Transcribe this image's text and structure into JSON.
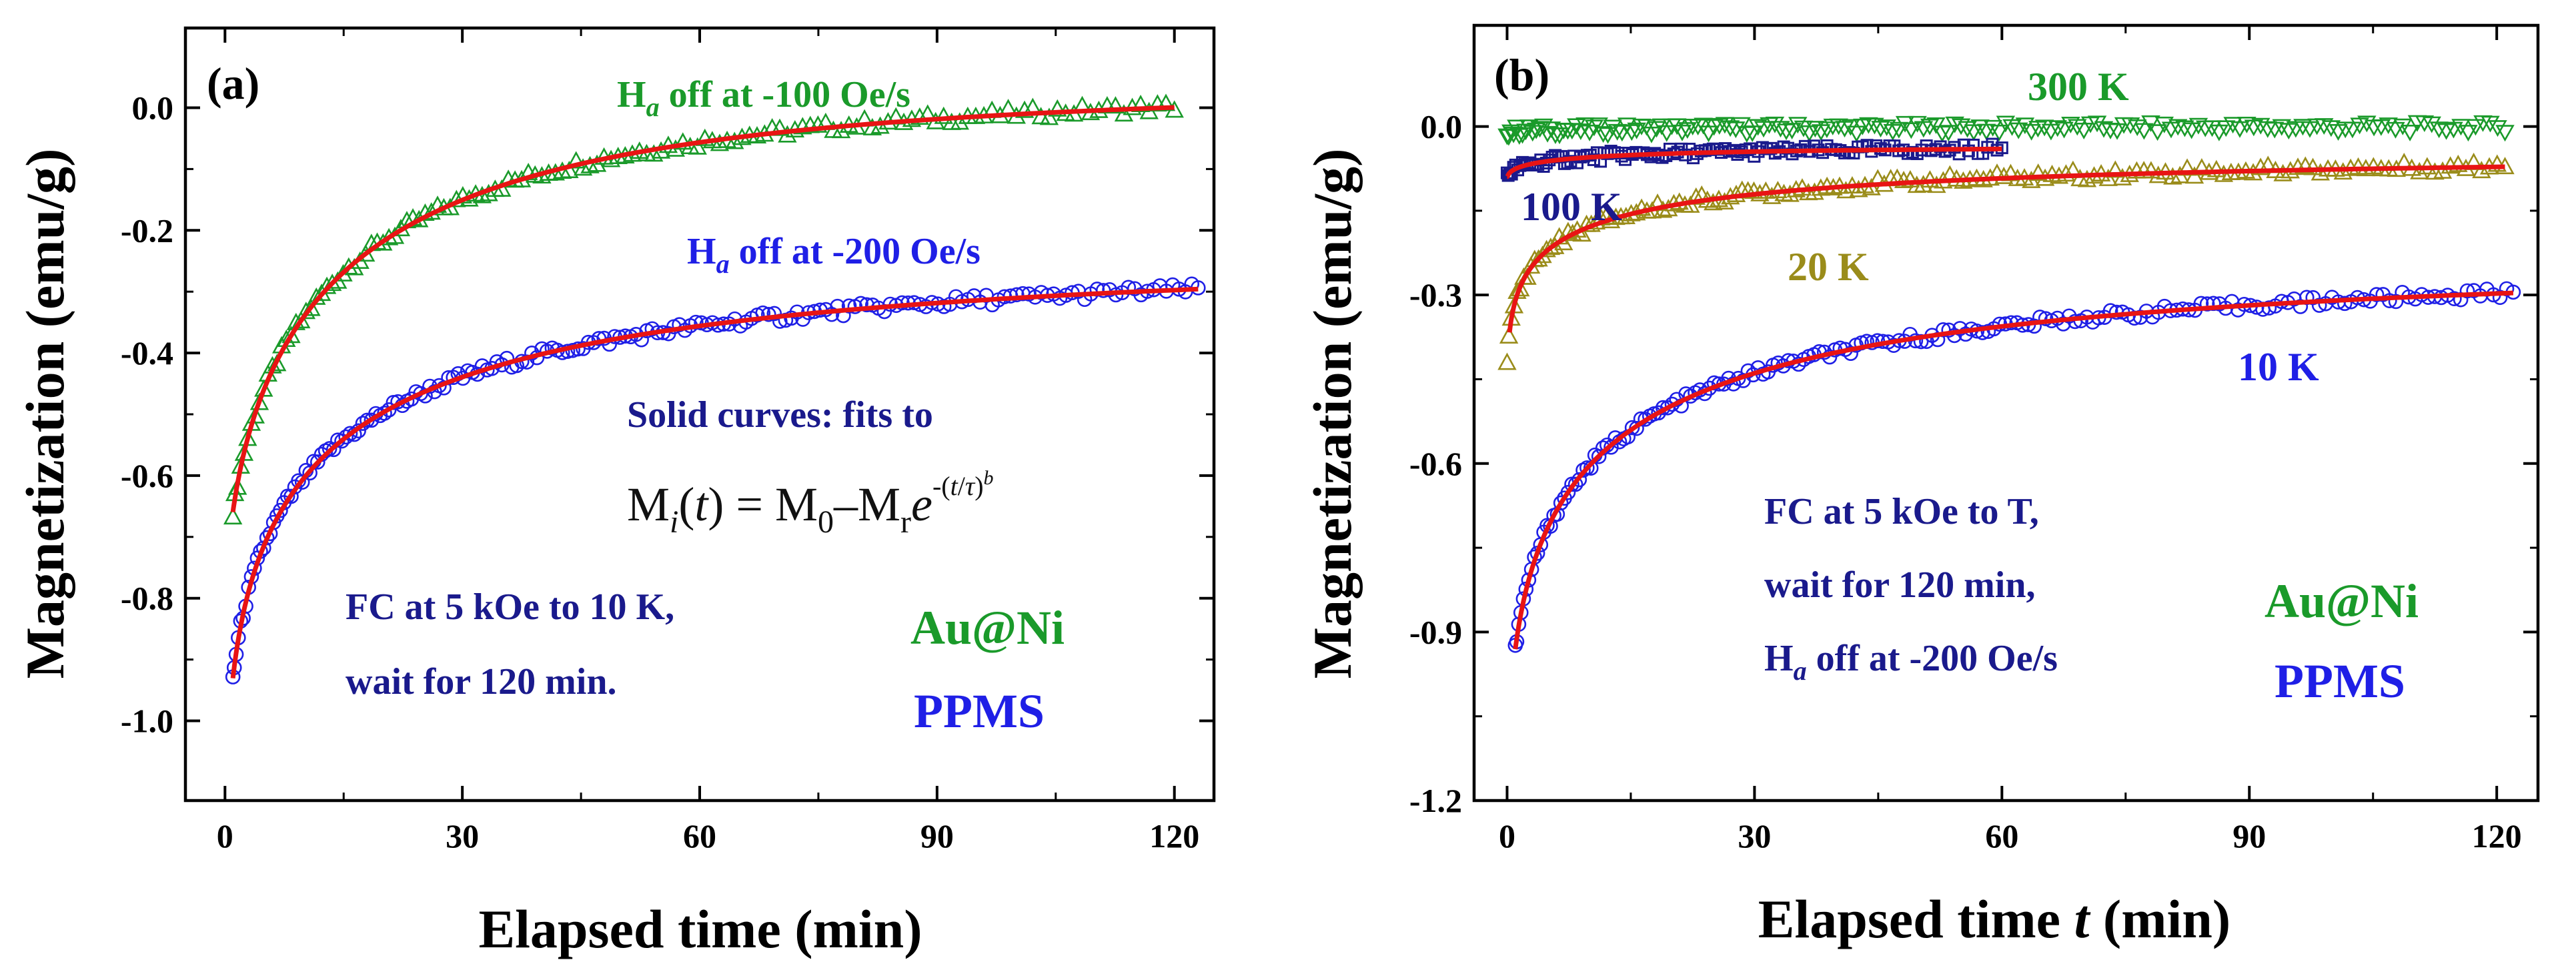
{
  "chart_data": [
    {
      "panel": "(a)",
      "type": "scatter",
      "xlabel": "Elapsed time (min)",
      "ylabel": "Magnetization (emu/g)",
      "xlim": [
        -5,
        125
      ],
      "ylim": [
        -1.13,
        0.13
      ],
      "xticks": [
        0,
        30,
        60,
        90,
        120
      ],
      "xtick_labels": [
        "0",
        "30",
        "60",
        "90",
        "120"
      ],
      "yticks": [
        0.0,
        -0.2,
        -0.4,
        -0.6,
        -0.8,
        -1.0
      ],
      "ytick_labels": [
        "0.0",
        "-0.2",
        "-0.4",
        "-0.6",
        "-0.8",
        "-1.0"
      ],
      "series": [
        {
          "name": "Ha off at -100 Oe/s",
          "marker": "triangle",
          "color": "#1a9a2a",
          "t_start": 1,
          "t_end": 120,
          "n_markers": 140,
          "fit": {
            "M0": 0.03,
            "Mr": 0.88,
            "tau": 13.0,
            "b": 0.55,
            "t_start": 1,
            "t_end": 120
          },
          "label_parts": [
            "H",
            "a",
            " off at -100 Oe/s"
          ]
        },
        {
          "name": "Ha off at -200 Oe/s",
          "marker": "circle",
          "color": "#1f1fe6",
          "t_start": 1,
          "t_end": 123,
          "n_markers": 190,
          "fit": {
            "M0": -0.245,
            "Mr": 1.02,
            "tau": 9.0,
            "b": 0.42,
            "t_start": 1,
            "t_end": 123
          },
          "label_parts": [
            "H",
            "a",
            " off at -200 Oe/s"
          ]
        }
      ],
      "fit_color": "#e81414",
      "annotations": {
        "panel_label": "(a)",
        "fit_caption": "Solid curves: fits to",
        "equation": {
          "M": "M",
          "sub_i": "i",
          "t_expr": "(t) = M",
          "sub_0": "0",
          "minus": "–M",
          "sub_r": "r",
          "e": "e",
          "exp_pre": "-(",
          "exp_t": "t",
          "exp_slash": "/",
          "exp_tau": "τ",
          "exp_post": ")",
          "exp_b": "b"
        },
        "protocol_line1": "FC at 5 kOe to 10 K,",
        "protocol_line2": "wait for 120 min.",
        "sample": "Au@Ni",
        "instrument": "PPMS"
      }
    },
    {
      "panel": "(b)",
      "type": "scatter",
      "xlabel_parts": [
        "Elapsed time ",
        "t",
        " (min)"
      ],
      "ylabel": "Magnetization (emu/g)",
      "xlim": [
        -4,
        125
      ],
      "ylim": [
        -1.2,
        0.18
      ],
      "xticks": [
        0,
        30,
        60,
        90,
        120
      ],
      "xtick_labels": [
        "0",
        "30",
        "60",
        "90",
        "120"
      ],
      "yticks": [
        0.0,
        -0.3,
        -0.6,
        -0.9,
        -1.2
      ],
      "ytick_labels": [
        "0.0",
        "-0.3",
        "-0.6",
        "-0.9",
        "-1.2"
      ],
      "series": [
        {
          "name": "300 K",
          "marker": "triangle-down",
          "color": "#1a9a2a",
          "t_start": 0,
          "t_end": 121,
          "n_markers": 170,
          "fit": {
            "M0": 0.0,
            "Mr": 0.01,
            "tau": 20.0,
            "b": 0.5,
            "t_start": 0,
            "t_end": 121
          },
          "show_fit": false
        },
        {
          "name": "100 K",
          "marker": "square",
          "color": "#1a1a8c",
          "t_start": 0,
          "t_end": 60,
          "n_markers": 130,
          "fit": {
            "M0": -0.035,
            "Mr": 0.06,
            "tau": 8.0,
            "b": 0.45,
            "t_start": 0,
            "t_end": 60
          },
          "show_fit": true
        },
        {
          "name": "20 K",
          "marker": "triangle",
          "color": "#9a8c1a",
          "t_start": 0,
          "t_end": 121,
          "n_markers": 160,
          "fit": {
            "M0": -0.05,
            "Mr": 0.46,
            "tau": 5.0,
            "b": 0.35,
            "t_start": 0.3,
            "t_end": 121
          },
          "show_fit": true
        },
        {
          "name": "10 K",
          "marker": "circle",
          "color": "#1f1fe6",
          "t_start": 1,
          "t_end": 122,
          "n_markers": 190,
          "fit": {
            "M0": -0.245,
            "Mr": 1.02,
            "tau": 9.0,
            "b": 0.42,
            "t_start": 1,
            "t_end": 122
          },
          "show_fit": true
        }
      ],
      "fit_color": "#e81414",
      "annotations": {
        "panel_label": "(b)",
        "label_300K": "300 K",
        "label_100K": "100 K",
        "label_20K": "20 K",
        "label_10K": "10 K",
        "protocol_line1": "FC at 5 kOe to T,",
        "protocol_line2": "wait for 120 min,",
        "protocol_line3_parts": [
          "H",
          "a",
          " off at -200 Oe/s"
        ],
        "sample": "Au@Ni",
        "instrument": "PPMS"
      }
    }
  ]
}
